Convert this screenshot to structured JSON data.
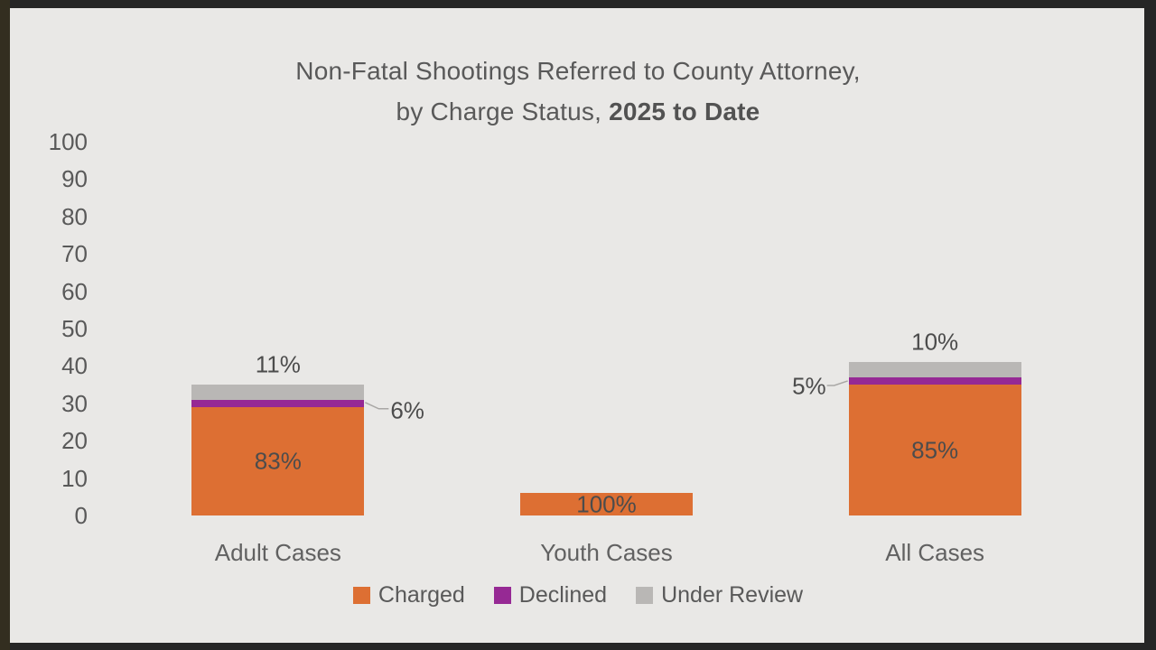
{
  "frame": {
    "outer_border_color": "#262626",
    "left_strip_color": "#332e20",
    "slide_background": "#e9e8e6"
  },
  "chart_data": {
    "type": "bar",
    "stacked": true,
    "title_line1": "Non-Fatal Shootings Referred to County Attorney,",
    "title_line2_normal": "by Charge Status, ",
    "title_line2_bold": "2025 to Date",
    "categories": [
      "Adult Cases",
      "Youth Cases",
      "All Cases"
    ],
    "ylim": [
      0,
      100
    ],
    "ytick_step": 10,
    "gridlines": false,
    "legend_position": "bottom",
    "series": [
      {
        "name": "Charged",
        "color": "#dd6f33",
        "values": [
          29,
          6,
          35
        ]
      },
      {
        "name": "Declined",
        "color": "#962994",
        "values": [
          2,
          0,
          2
        ]
      },
      {
        "name": "Under Review",
        "color": "#b9b7b5",
        "values": [
          4,
          0,
          4
        ]
      }
    ],
    "category_totals": [
      35,
      6,
      41
    ],
    "labels": [
      {
        "cat": 0,
        "series": 0,
        "text": "83%",
        "placement": "inside"
      },
      {
        "cat": 0,
        "series": 1,
        "text": "6%",
        "placement": "callout-right"
      },
      {
        "cat": 0,
        "series": 2,
        "text": "11%",
        "placement": "above"
      },
      {
        "cat": 1,
        "series": 0,
        "text": "100%",
        "placement": "inside"
      },
      {
        "cat": 2,
        "series": 0,
        "text": "85%",
        "placement": "inside"
      },
      {
        "cat": 2,
        "series": 1,
        "text": "5%",
        "placement": "callout-left"
      },
      {
        "cat": 2,
        "series": 2,
        "text": "10%",
        "placement": "above"
      }
    ],
    "label_color": "#4c4c4c",
    "leader_line_color": "#a9a7a5",
    "axis_text_color": "#595959",
    "title_color": "#595959"
  }
}
